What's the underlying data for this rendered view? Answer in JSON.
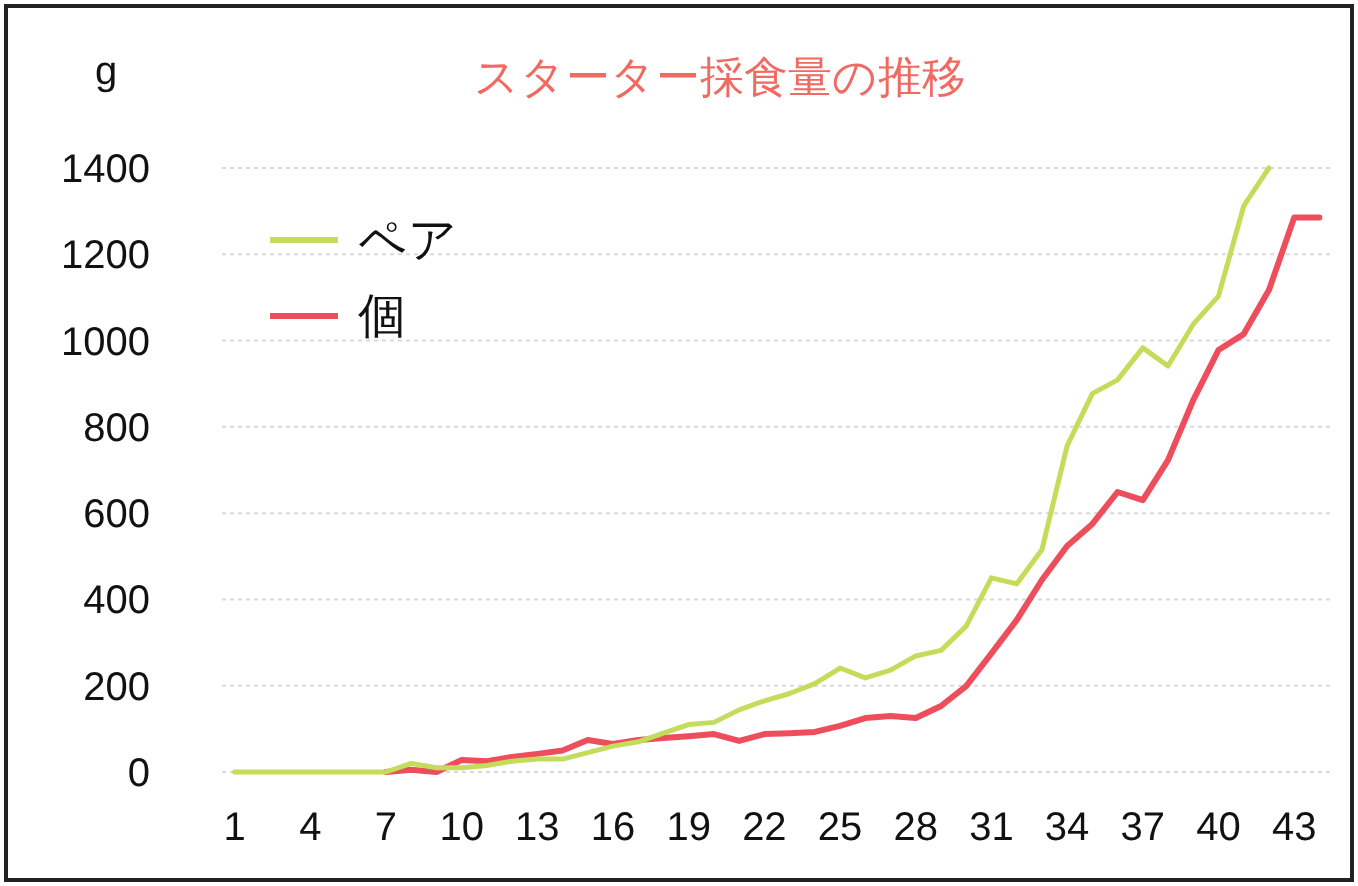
{
  "chart_data": {
    "type": "line",
    "title": "スターター採食量の推移",
    "ylabel": "g",
    "categories": [
      "1",
      null,
      null,
      "4",
      null,
      null,
      "7",
      null,
      null,
      "10",
      null,
      null,
      "13",
      null,
      null,
      "16",
      null,
      null,
      "19",
      null,
      null,
      "22",
      null,
      null,
      "25",
      null,
      null,
      "28",
      null,
      null,
      "31",
      null,
      null,
      "34",
      null,
      null,
      "37",
      null,
      null,
      "40",
      null,
      null,
      "43",
      null
    ],
    "series": [
      {
        "name": "ペア",
        "color": "#c3dd5a",
        "values": [
          0,
          0,
          0,
          0,
          0,
          0,
          0,
          20,
          10,
          10,
          15,
          25,
          30,
          30,
          45,
          60,
          70,
          90,
          110,
          115,
          144,
          165,
          182,
          205,
          241,
          218,
          236,
          269,
          282,
          338,
          450,
          436,
          515,
          756,
          877,
          909,
          983,
          941,
          1038,
          1103,
          1312,
          1400,
          null,
          null
        ]
      },
      {
        "name": "個",
        "color": "#ee4d5c",
        "values": [
          null,
          null,
          null,
          null,
          null,
          null,
          0,
          5,
          0,
          28,
          25,
          35,
          42,
          50,
          74,
          65,
          74,
          79,
          83,
          88,
          72,
          88,
          90,
          93,
          107,
          125,
          130,
          125,
          153,
          199,
          275,
          352,
          445,
          524,
          575,
          649,
          630,
          723,
          862,
          978,
          1015,
          1117,
          1285,
          1285
        ]
      }
    ],
    "ylim": [
      0,
      1400
    ],
    "yticks": [
      0,
      200,
      400,
      600,
      800,
      1000,
      1200,
      1400
    ],
    "grid": "y",
    "legend": "top left"
  }
}
